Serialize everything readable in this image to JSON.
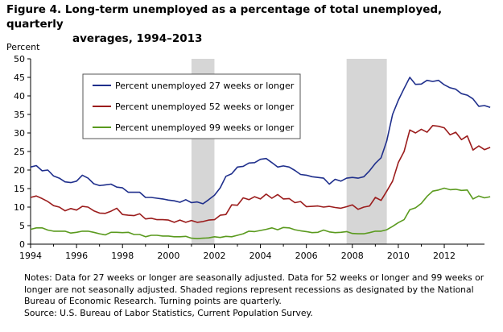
{
  "title_line1": "Figure 4. Long-term unemployed as a percentage of total unemployed, quarterly",
  "title_line2": "averages, 1994–2013",
  "notes": {
    "line1": "Notes: Data for 27 weeks or longer are seasonally adjusted. Data for 52 weeks or longer and 99 weeks or longer are not seasonally adjusted. Shaded regions represent recessions as designated by the National Bureau of Economic Research. Turning points are quarterly.",
    "line2": "Source: U.S. Bureau of Labor Statistics, Current Population Survey."
  },
  "chart_data": {
    "type": "line",
    "ylabel": "Percent",
    "ylim": [
      0,
      50
    ],
    "yticks": [
      "0",
      "5",
      "10",
      "15",
      "20",
      "25",
      "30",
      "35",
      "40",
      "45",
      "50"
    ],
    "xlim": [
      1994,
      2013.75
    ],
    "xticks": [
      "1994",
      "1996",
      "1998",
      "2000",
      "2002",
      "2004",
      "2006",
      "2008",
      "2010",
      "2012"
    ],
    "recessions": [
      [
        2001.0,
        2002.0
      ],
      [
        2007.75,
        2009.5
      ]
    ],
    "recession_color": "#d6d6d6",
    "legend_position": "top-left",
    "series": [
      {
        "name": "Percent unemployed 27 weeks or longer",
        "color": "#1f2f8c",
        "values": [
          20.8,
          21.2,
          19.8,
          20.0,
          18.4,
          17.8,
          16.8,
          16.6,
          17.0,
          18.6,
          17.8,
          16.3,
          15.8,
          16.0,
          16.2,
          15.4,
          15.2,
          14.0,
          14.0,
          14.0,
          12.6,
          12.6,
          12.4,
          12.2,
          11.9,
          11.7,
          11.3,
          12.0,
          11.2,
          11.4,
          10.9,
          12.0,
          13.2,
          15.2,
          18.3,
          19.0,
          20.8,
          21.0,
          21.9,
          22.0,
          22.9,
          23.1,
          22.0,
          20.8,
          21.1,
          20.8,
          19.9,
          18.8,
          18.6,
          18.2,
          18.0,
          17.8,
          16.2,
          17.5,
          17.0,
          17.8,
          18.0,
          17.8,
          18.2,
          19.8,
          21.8,
          23.3,
          27.9,
          35.0,
          38.8,
          42.0,
          45.0,
          43.1,
          43.2,
          44.2,
          43.9,
          44.2,
          43.0,
          42.2,
          41.8,
          40.6,
          40.2,
          39.2,
          37.2,
          37.4,
          36.9
        ]
      },
      {
        "name": "Percent unemployed 52 weeks or longer",
        "color": "#9b1c1c",
        "values": [
          12.6,
          13.0,
          12.3,
          11.5,
          10.4,
          10.0,
          9.0,
          9.6,
          9.2,
          10.2,
          10.0,
          9.0,
          8.4,
          8.3,
          8.9,
          9.7,
          8.0,
          7.8,
          7.7,
          8.2,
          6.8,
          7.0,
          6.6,
          6.6,
          6.5,
          5.9,
          6.5,
          5.9,
          6.4,
          5.9,
          6.1,
          6.5,
          6.6,
          7.8,
          8.0,
          10.6,
          10.5,
          12.5,
          12.0,
          12.8,
          12.2,
          13.5,
          12.4,
          13.4,
          12.2,
          12.3,
          11.2,
          11.5,
          10.1,
          10.2,
          10.3,
          10.0,
          10.2,
          9.9,
          9.7,
          10.1,
          10.6,
          9.4,
          10.0,
          10.3,
          12.6,
          11.8,
          14.3,
          17.0,
          22.0,
          25.0,
          30.8,
          30.0,
          31.0,
          30.2,
          32.0,
          31.8,
          31.4,
          29.5,
          30.2,
          28.2,
          29.2,
          25.4,
          26.5,
          25.5,
          26.1
        ]
      },
      {
        "name": "Percent unemployed 99 weeks or longer",
        "color": "#5a9a1e",
        "values": [
          4.0,
          4.4,
          4.4,
          3.8,
          3.5,
          3.5,
          3.5,
          3.0,
          3.2,
          3.5,
          3.5,
          3.2,
          2.8,
          2.5,
          3.2,
          3.2,
          3.1,
          3.2,
          2.6,
          2.6,
          2.0,
          2.4,
          2.4,
          2.2,
          2.2,
          2.0,
          2.0,
          2.1,
          1.6,
          1.5,
          1.6,
          1.7,
          2.0,
          1.8,
          2.1,
          2.0,
          2.4,
          2.8,
          3.5,
          3.4,
          3.7,
          4.0,
          4.4,
          3.9,
          4.5,
          4.4,
          3.9,
          3.6,
          3.4,
          3.1,
          3.2,
          3.8,
          3.3,
          3.1,
          3.2,
          3.4,
          2.9,
          2.8,
          2.8,
          3.1,
          3.5,
          3.5,
          3.9,
          4.8,
          5.8,
          6.6,
          9.3,
          9.8,
          11.0,
          12.9,
          14.3,
          14.6,
          15.1,
          14.7,
          14.8,
          14.5,
          14.6,
          12.2,
          13.0,
          12.5,
          12.8
        ]
      }
    ]
  }
}
